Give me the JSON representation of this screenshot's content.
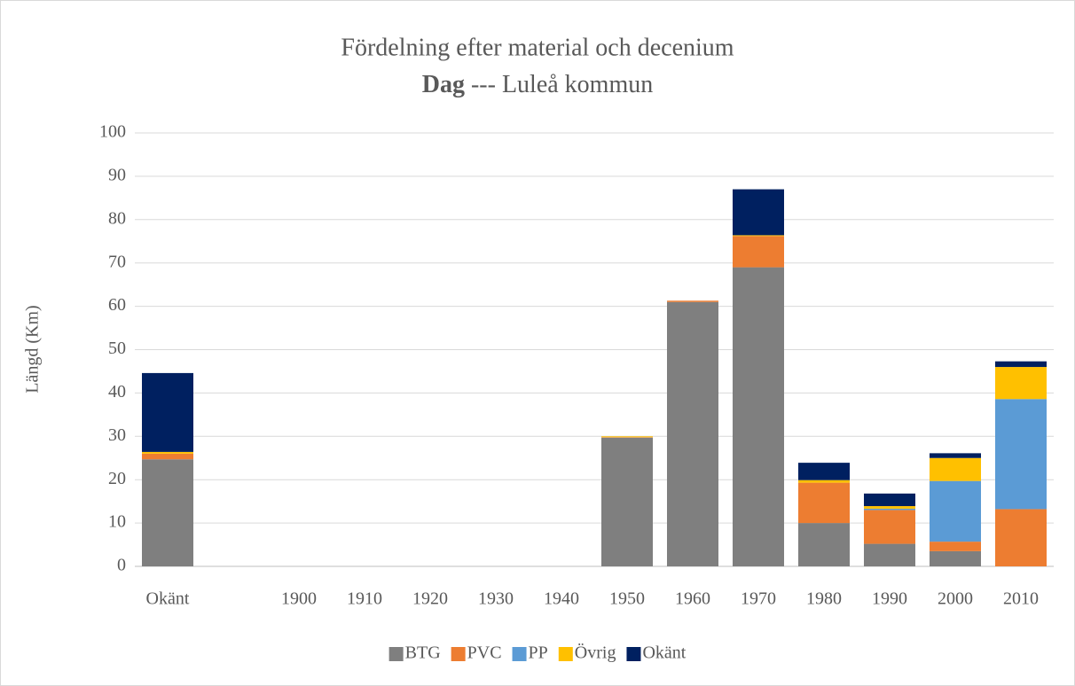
{
  "chart_data": {
    "type": "stacked_bar",
    "title": "Fördelning efter material och decenium",
    "subtitle_bold": "Dag",
    "subtitle": "--- Luleå kommun",
    "ylabel": "Längd (Km)",
    "categories": [
      "Okänt",
      null,
      "1900",
      "1910",
      "1920",
      "1930",
      "1940",
      "1950",
      "1960",
      "1970",
      "1980",
      "1990",
      "2000",
      "2010"
    ],
    "series": [
      {
        "name": "BTG",
        "color": "#7f7f7f",
        "values": [
          24.7,
          0,
          0,
          0,
          0,
          0,
          0,
          29.7,
          61,
          69,
          10,
          5.2,
          3.5,
          0
        ]
      },
      {
        "name": "PVC",
        "color": "#ed7d31",
        "values": [
          1.3,
          0,
          0,
          0,
          0,
          0,
          0,
          0.1,
          0.3,
          7.2,
          9.3,
          7.8,
          2.2,
          13.2
        ]
      },
      {
        "name": "PP",
        "color": "#5b9bd5",
        "values": [
          0,
          0,
          0,
          0,
          0,
          0,
          0,
          0,
          0,
          0,
          0,
          0.3,
          14,
          25.4
        ]
      },
      {
        "name": "Övrig",
        "color": "#ffc000",
        "values": [
          0.4,
          0,
          0,
          0,
          0,
          0,
          0,
          0.2,
          0,
          0.2,
          0.6,
          0.6,
          5.3,
          7.4
        ]
      },
      {
        "name": "Okänt",
        "color": "#002060",
        "values": [
          18.2,
          0,
          0,
          0,
          0,
          0,
          0,
          0,
          0,
          10.6,
          4,
          2.9,
          1.1,
          1.3
        ]
      }
    ],
    "ylim": [
      0,
      100
    ],
    "yticks": [
      0,
      10,
      20,
      30,
      40,
      50,
      60,
      70,
      80,
      90,
      100
    ],
    "grid": true,
    "legend": "bottom"
  }
}
